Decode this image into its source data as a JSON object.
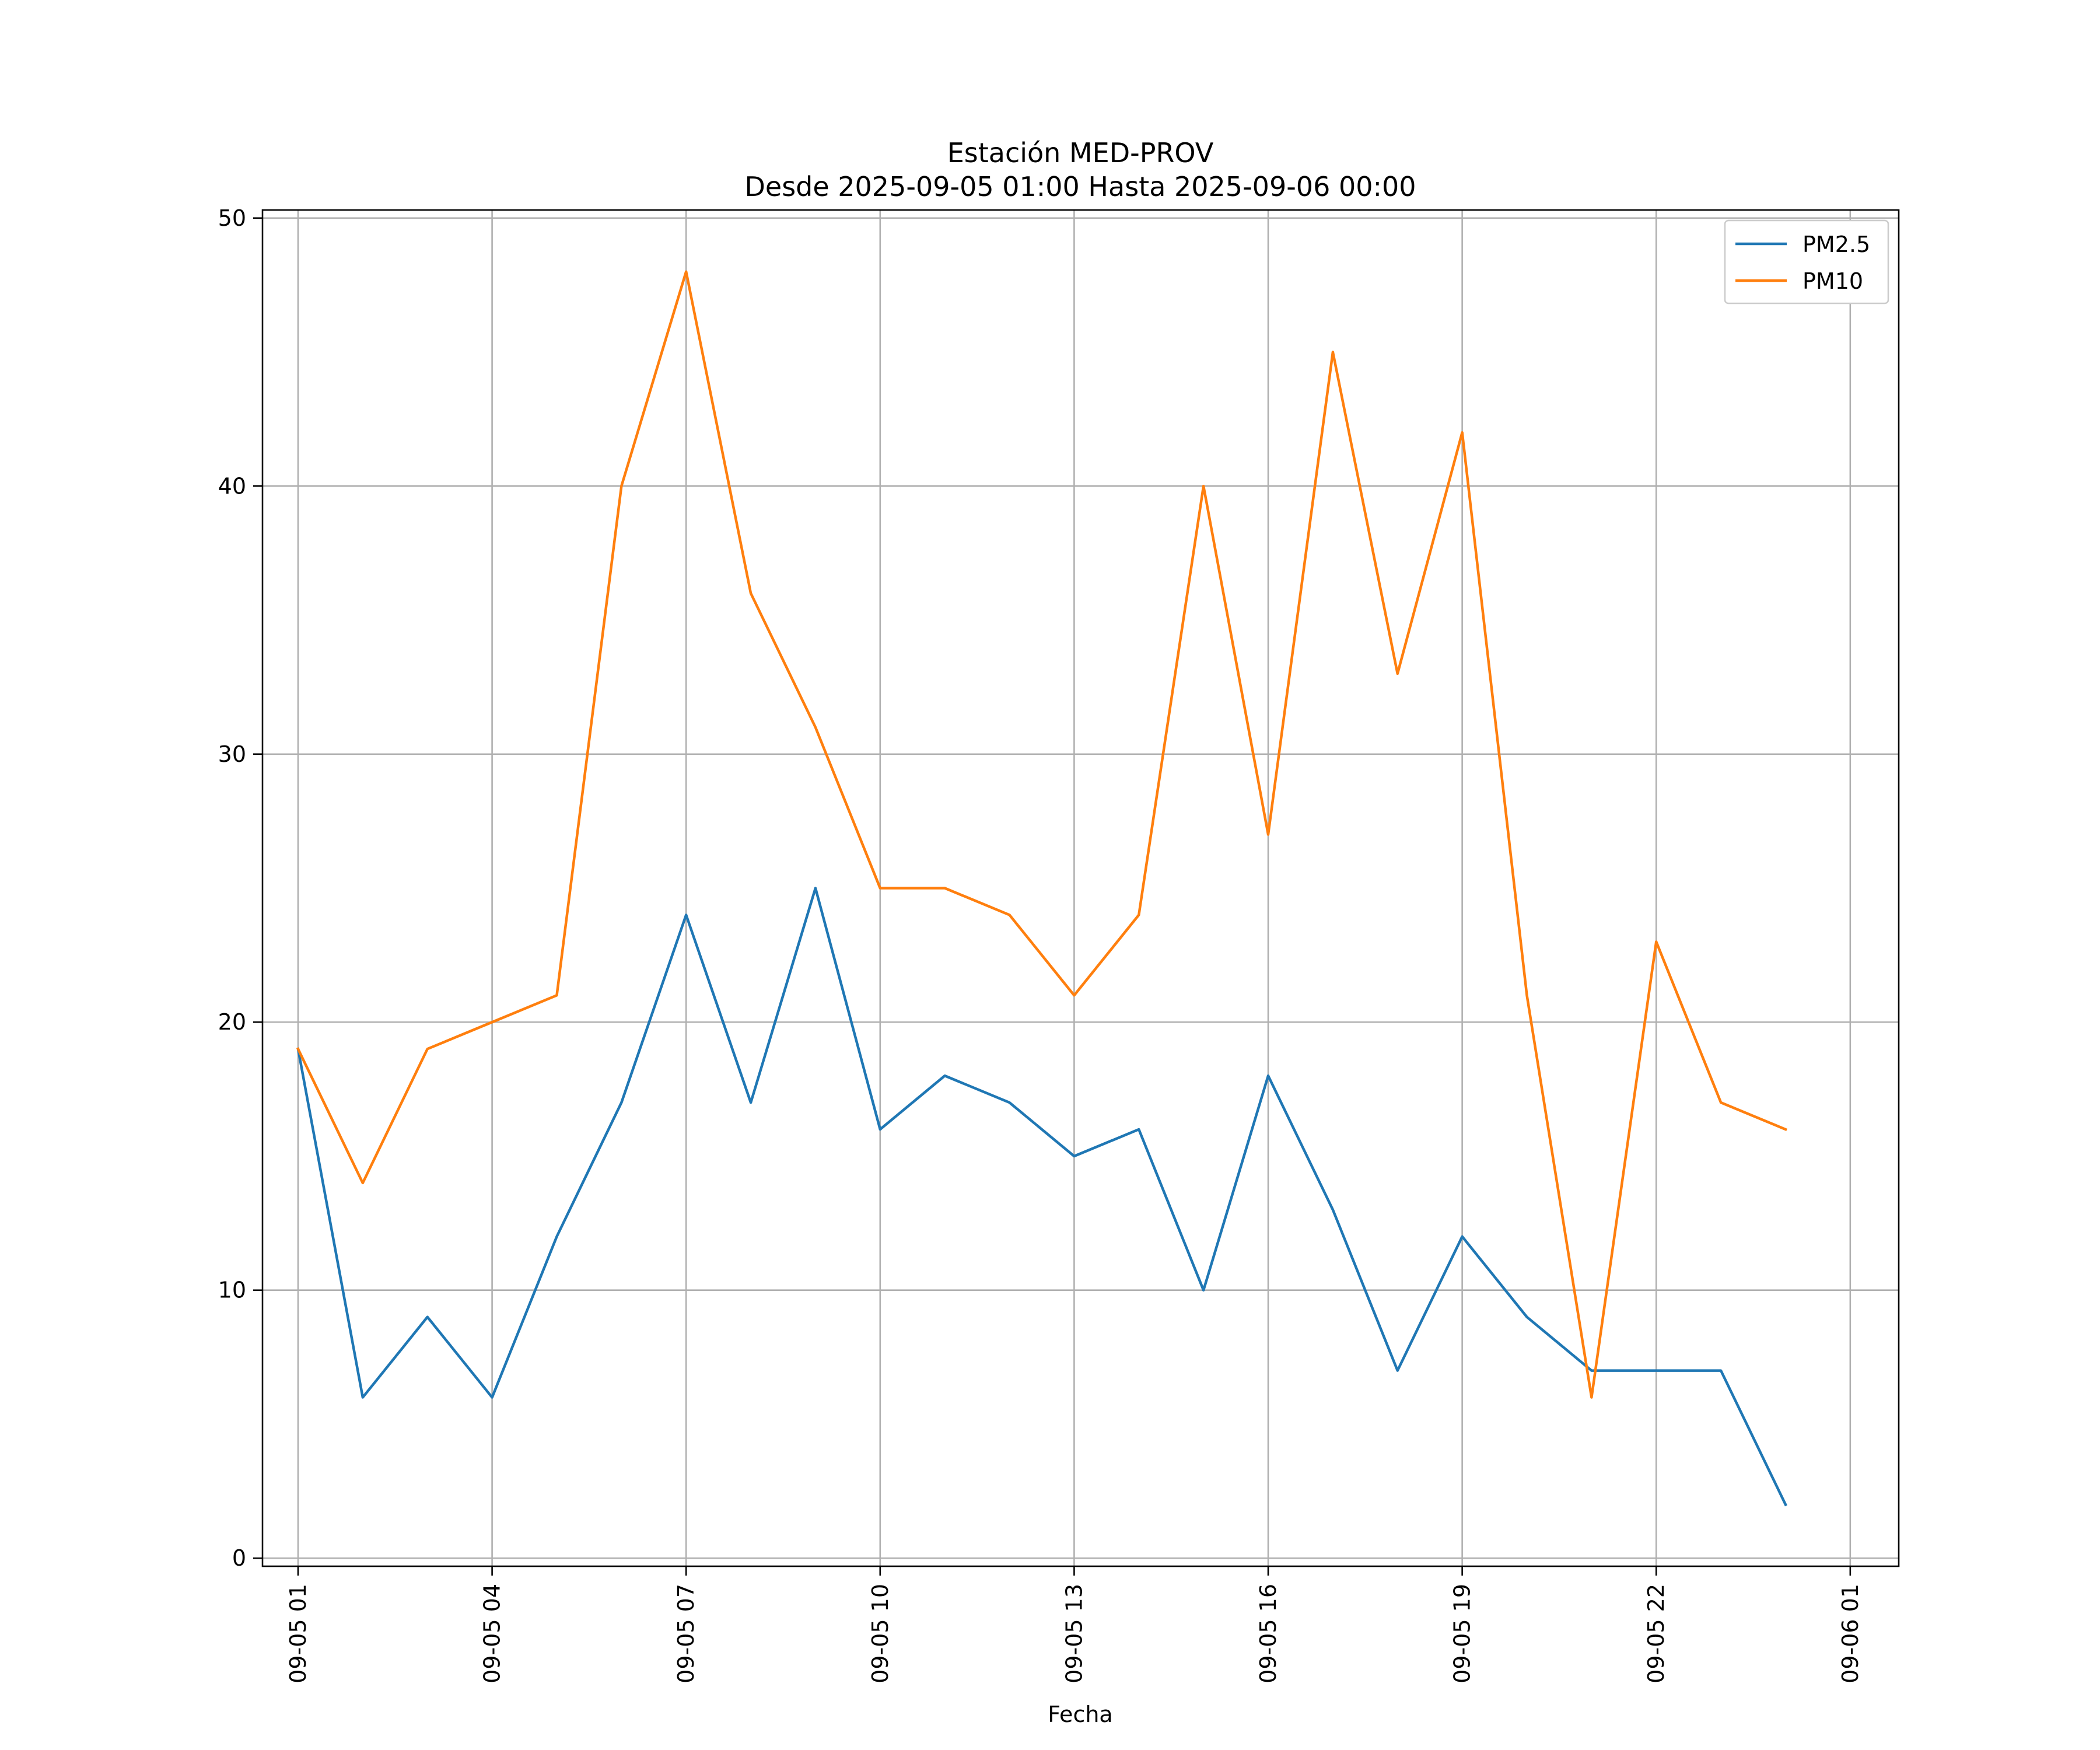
{
  "chart_data": {
    "type": "line",
    "title": "Estación MED-PROV",
    "subtitle": "Desde 2025-09-05 01:00 Hasta 2025-09-06 00:00",
    "xlabel": "Fecha",
    "ylabel": "",
    "x": [
      "09-05 01",
      "09-05 02",
      "09-05 03",
      "09-05 04",
      "09-05 05",
      "09-05 06",
      "09-05 07",
      "09-05 08",
      "09-05 09",
      "09-05 10",
      "09-05 11",
      "09-05 12",
      "09-05 13",
      "09-05 14",
      "09-05 15",
      "09-05 16",
      "09-05 17",
      "09-05 18",
      "09-05 19",
      "09-05 20",
      "09-05 21",
      "09-05 22",
      "09-05 23",
      "09-06 00"
    ],
    "x_hours": [
      1,
      2,
      3,
      4,
      5,
      6,
      7,
      8,
      9,
      10,
      11,
      12,
      13,
      14,
      15,
      16,
      17,
      18,
      19,
      20,
      21,
      22,
      23,
      24
    ],
    "xlim_hours": [
      0.45,
      25.75
    ],
    "xticks": [
      {
        "hour": 1,
        "label": "09-05 01"
      },
      {
        "hour": 4,
        "label": "09-05 04"
      },
      {
        "hour": 7,
        "label": "09-05 07"
      },
      {
        "hour": 10,
        "label": "09-05 10"
      },
      {
        "hour": 13,
        "label": "09-05 13"
      },
      {
        "hour": 16,
        "label": "09-05 16"
      },
      {
        "hour": 19,
        "label": "09-05 19"
      },
      {
        "hour": 22,
        "label": "09-05 22"
      },
      {
        "hour": 25,
        "label": "09-06 01"
      }
    ],
    "yticks": [
      0,
      10,
      20,
      30,
      40,
      50
    ],
    "ylim": [
      -0.3,
      50.3
    ],
    "grid": true,
    "legend_position": "top-right",
    "series": [
      {
        "name": "PM2.5",
        "color": "#1f77b4",
        "values": [
          19,
          6,
          9,
          6,
          12,
          17,
          24,
          17,
          25,
          16,
          18,
          17,
          15,
          16,
          10,
          18,
          13,
          7,
          12,
          9,
          7,
          7,
          7,
          2
        ]
      },
      {
        "name": "PM10",
        "color": "#ff7f0e",
        "values": [
          19,
          14,
          19,
          20,
          21,
          40,
          48,
          36,
          31,
          25,
          25,
          24,
          21,
          24,
          40,
          27,
          45,
          33,
          42,
          21,
          6,
          23,
          17,
          16
        ]
      }
    ]
  }
}
